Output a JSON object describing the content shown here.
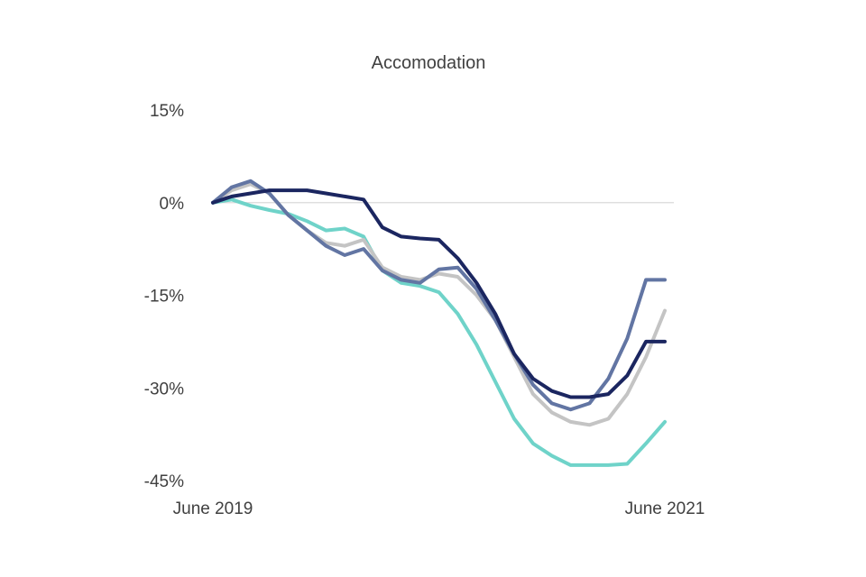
{
  "chart_data": {
    "type": "line",
    "title": "Accomodation",
    "xlabel": "",
    "ylabel": "",
    "x_tick_labels": [
      "June 2019",
      "June 2021"
    ],
    "x": [
      0,
      1,
      2,
      3,
      4,
      5,
      6,
      7,
      8,
      9,
      10,
      11,
      12,
      13,
      14,
      15,
      16,
      17,
      18,
      19,
      20,
      21,
      22,
      23,
      24
    ],
    "y_ticks": [
      "15%",
      "0%",
      "-15%",
      "-30%",
      "-45%"
    ],
    "y_tick_values": [
      15,
      0,
      -15,
      -30,
      -45
    ],
    "ylim": [
      -45,
      15
    ],
    "grid": false,
    "zero_line": true,
    "legend": "none",
    "series": [
      {
        "color": "#6fd3c9",
        "values": [
          0,
          0.5,
          -0.5,
          -1.2,
          -1.8,
          -3,
          -4.5,
          -4.2,
          -5.5,
          -11,
          -13,
          -13.5,
          -14.5,
          -18,
          -23,
          -29,
          -35,
          -39,
          -41,
          -42.5,
          -42.5,
          -42.5,
          -42.3,
          -39,
          -35.5
        ]
      },
      {
        "color": "#c4c4c4",
        "values": [
          0,
          2,
          3,
          1.5,
          -2,
          -4.5,
          -6.5,
          -7,
          -6,
          -10.5,
          -12,
          -12.5,
          -11.5,
          -12,
          -15,
          -19,
          -25,
          -31,
          -34,
          -35.5,
          -36,
          -35,
          -31,
          -25,
          -17.5
        ]
      },
      {
        "color": "#6275a3",
        "values": [
          0,
          2.5,
          3.5,
          1.5,
          -2,
          -4.5,
          -7,
          -8.5,
          -7.5,
          -11,
          -12.5,
          -13,
          -10.8,
          -10.5,
          -14,
          -19,
          -24.5,
          -29.5,
          -32.5,
          -33.5,
          -32.5,
          -28.5,
          -22,
          -12.5,
          -12.5
        ]
      },
      {
        "color": "#1b2660",
        "values": [
          0,
          1,
          1.5,
          2,
          2,
          2,
          1.5,
          1,
          0.5,
          -4,
          -5.5,
          -5.8,
          -6,
          -9,
          -13,
          -18,
          -24.5,
          -28.5,
          -30.5,
          -31.5,
          -31.5,
          -31,
          -28,
          -22.5,
          -22.5
        ]
      }
    ]
  }
}
